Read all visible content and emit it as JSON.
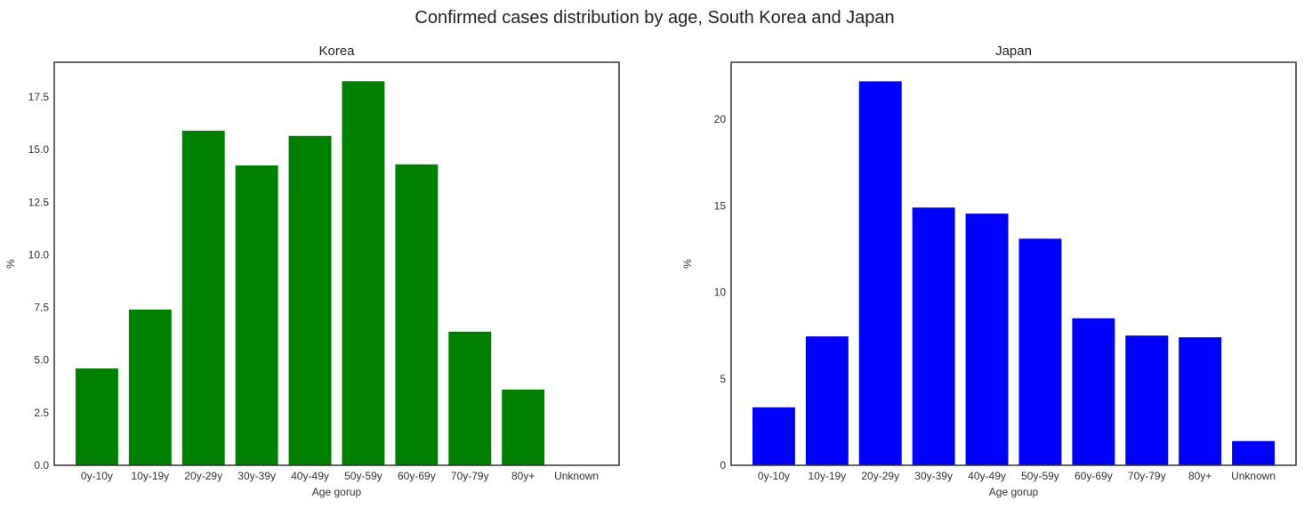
{
  "figure": {
    "title": "Confirmed cases distribution by age, South Korea and Japan"
  },
  "chart_data": [
    {
      "type": "bar",
      "title": "Korea",
      "xlabel": "Age gorup",
      "ylabel": "%",
      "categories": [
        "0y-10y",
        "10y-19y",
        "20y-29y",
        "30y-39y",
        "40y-49y",
        "50y-59y",
        "60y-69y",
        "70y-79y",
        "80y+",
        "Unknown"
      ],
      "values": [
        4.6,
        7.4,
        15.9,
        14.25,
        15.65,
        18.25,
        14.3,
        6.35,
        3.6,
        0
      ],
      "ylim": [
        0,
        19.15
      ],
      "yticks": [
        "0.0",
        "2.5",
        "5.0",
        "7.5",
        "10.0",
        "12.5",
        "15.0",
        "17.5"
      ],
      "ytick_values": [
        0,
        2.5,
        5,
        7.5,
        10,
        12.5,
        15,
        17.5
      ],
      "color": "#008000",
      "grid": false,
      "legend": "none"
    },
    {
      "type": "bar",
      "title": "Japan",
      "xlabel": "Age gorup",
      "ylabel": "%",
      "categories": [
        "0y-10y",
        "10y-19y",
        "20y-29y",
        "30y-39y",
        "40y-49y",
        "50y-59y",
        "60y-69y",
        "70y-79y",
        "80y+",
        "Unknown"
      ],
      "values": [
        3.35,
        7.45,
        22.2,
        14.9,
        14.55,
        13.1,
        8.5,
        7.5,
        7.4,
        1.4
      ],
      "ylim": [
        0,
        23.3
      ],
      "yticks": [
        "0",
        "5",
        "10",
        "15",
        "20"
      ],
      "ytick_values": [
        0,
        5,
        10,
        15,
        20
      ],
      "color": "#0000ff",
      "grid": false,
      "legend": "none"
    }
  ]
}
